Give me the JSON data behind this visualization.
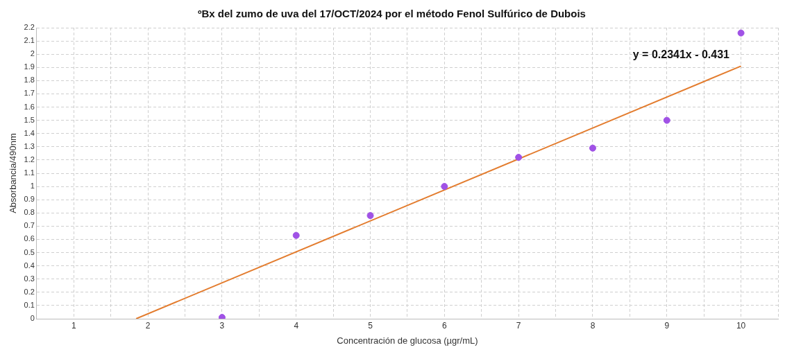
{
  "chart_data": {
    "type": "scatter",
    "title": "ºBx del zumo de uva del 17/OCT/2024 por el método Fenol Sulfúrico de Dubois",
    "xlabel": "Concentración de glucosa (µgr/mL)",
    "ylabel": "Absorbancia/490nm",
    "x": [
      3,
      4,
      5,
      6,
      7,
      8,
      9,
      10
    ],
    "series": [
      {
        "color": "#a052e6",
        "values": [
          0.01,
          0.63,
          0.78,
          1.0,
          1.22,
          1.29,
          1.5,
          2.16
        ]
      },
      {
        "type": "line",
        "marker": "none",
        "color": "#e37c2e",
        "x": [
          1.841,
          10
        ],
        "values": [
          0,
          1.91
        ]
      }
    ],
    "annotations": [
      "y = 0.2341x - 0.431"
    ],
    "xlim": [
      0.5,
      10.5
    ],
    "xticks": [
      {
        "value": 0.5,
        "label": null
      },
      1,
      {
        "value": 1.5,
        "label": null
      },
      2,
      {
        "value": 2.5,
        "label": null
      },
      3,
      {
        "value": 3.5,
        "label": null
      },
      4,
      {
        "value": 4.5,
        "label": null
      },
      5,
      {
        "value": 5.5,
        "label": null
      },
      6,
      {
        "value": 6.5,
        "label": null
      },
      7,
      {
        "value": 7.5,
        "label": null
      },
      8,
      {
        "value": 8.5,
        "label": null
      },
      9,
      {
        "value": 9.5,
        "label": null
      },
      10,
      {
        "value": 10.5,
        "label": null
      }
    ],
    "ylim": [
      0,
      2.2
    ],
    "yticks": [
      0,
      0.1,
      0.2,
      0.3,
      0.4,
      0.5,
      0.6,
      0.7,
      0.8,
      0.9,
      1,
      1.1,
      1.2,
      1.3,
      1.4,
      1.5,
      1.6,
      1.7,
      1.8,
      1.9,
      2,
      2.1,
      2.2
    ],
    "grid": true,
    "legend": false,
    "marker": "circle"
  }
}
